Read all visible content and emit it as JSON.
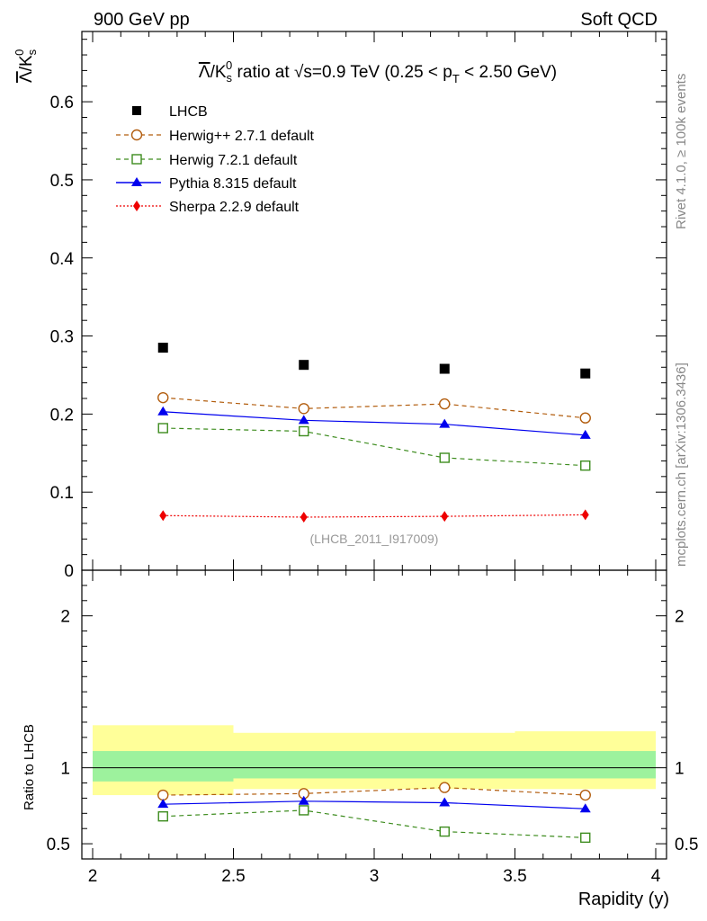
{
  "header": {
    "left": "900 GeV pp",
    "right": "Soft QCD"
  },
  "side_labels": {
    "rivet": "Rivet 4.1.0, ≥ 100k events",
    "mcplots": "mcplots.cern.ch [arXiv:1306.3436]"
  },
  "chart_data": {
    "type": "line",
    "title_parts": {
      "lambda_bar": "Λ",
      "slash_k": "/K",
      "sub_s": "s",
      "sup_0": "0",
      "ratio_at": " ratio at ",
      "sqrt": "√",
      "s_eq": "s=0.9 TeV (0.25 < p",
      "sub_t": "T",
      "tail": " < 2.50 GeV)"
    },
    "ylabel_parts": {
      "lambda_bar": "Λ",
      "slash_k": "/K",
      "sub_s": "s",
      "sup_0": "0"
    },
    "xlabel": "Rapidity (y)",
    "ratio_ylabel": "Ratio to LHCB",
    "analysis_id": "(LHCB_2011_I917009)",
    "xlim": [
      2,
      4
    ],
    "ylim": [
      0,
      0.69
    ],
    "ratio_ylim": [
      0.4,
      2.3
    ],
    "x_bins": [
      [
        2.0,
        2.5
      ],
      [
        2.5,
        3.0
      ],
      [
        3.0,
        3.5
      ],
      [
        3.5,
        4.0
      ]
    ],
    "x": [
      2.25,
      2.75,
      3.25,
      3.75
    ],
    "x_ticks": [
      2,
      2.5,
      3,
      3.5,
      4
    ],
    "x_tick_labels": [
      "2",
      "2.5",
      "3",
      "3.5",
      "4"
    ],
    "y_ticks": [
      0,
      0.1,
      0.2,
      0.3,
      0.4,
      0.5,
      0.6
    ],
    "y_tick_labels": [
      "0",
      "0.1",
      "0.2",
      "0.3",
      "0.4",
      "0.5",
      "0.6"
    ],
    "ratio_ticks": [
      0.5,
      1,
      2
    ],
    "ratio_tick_labels": [
      "0.5",
      "1",
      "2"
    ],
    "reference": {
      "name": "LHCB",
      "color": "#000000",
      "values": [
        0.285,
        0.263,
        0.258,
        0.252
      ],
      "band_inner": [
        [
          0.91,
          1.11
        ],
        [
          0.93,
          1.11
        ],
        [
          0.93,
          1.11
        ],
        [
          0.93,
          1.11
        ]
      ],
      "band_outer": [
        [
          0.82,
          1.28
        ],
        [
          0.86,
          1.23
        ],
        [
          0.86,
          1.23
        ],
        [
          0.86,
          1.24
        ]
      ]
    },
    "series": [
      {
        "name": "Herwig++ 2.7.1 default",
        "color": "#b25d0e",
        "marker": "open-circle",
        "dash": "5,4",
        "values": [
          0.221,
          0.207,
          0.213,
          0.195
        ],
        "ratios": [
          0.82,
          0.83,
          0.87,
          0.82
        ]
      },
      {
        "name": "Herwig 7.2.1 default",
        "color": "#3d8c1e",
        "marker": "open-square",
        "dash": "5,4",
        "values": [
          0.182,
          0.178,
          0.144,
          0.134
        ],
        "ratios": [
          0.68,
          0.72,
          0.58,
          0.54
        ]
      },
      {
        "name": "Pythia 8.315 default",
        "color": "#0000ee",
        "marker": "filled-triangle",
        "dash": "",
        "values": [
          0.203,
          0.192,
          0.187,
          0.173
        ],
        "ratios": [
          0.76,
          0.78,
          0.77,
          0.73
        ]
      },
      {
        "name": "Sherpa 2.2.9 default",
        "color": "#ee0000",
        "marker": "filled-diamond",
        "dash": "2,2",
        "values": [
          0.07,
          0.068,
          0.069,
          0.071
        ],
        "ratios": null
      }
    ],
    "band_colors": {
      "inner": "#9df29d",
      "outer": "#ffff99"
    }
  }
}
